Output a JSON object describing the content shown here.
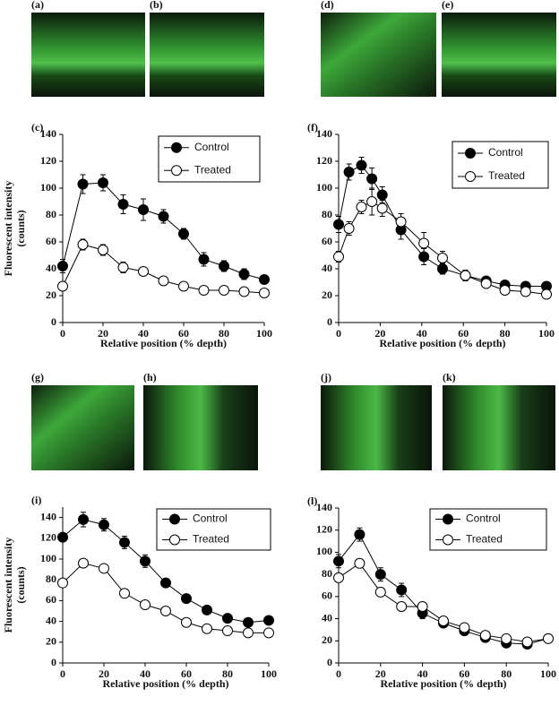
{
  "images": [
    {
      "label": "(a)"
    },
    {
      "label": "(b)"
    },
    {
      "label": "(d)"
    },
    {
      "label": "(e)"
    },
    {
      "label": "(g)"
    },
    {
      "label": "(h)"
    },
    {
      "label": "(j)"
    },
    {
      "label": "(k)"
    }
  ],
  "chart_data": [
    {
      "type": "line",
      "panel": "(c)",
      "ylabel": [
        "Fluorescent intensity",
        "(counts)"
      ],
      "xlabel": "Relative position (% depth)",
      "x": [
        0,
        10,
        20,
        30,
        40,
        50,
        60,
        70,
        80,
        90,
        100
      ],
      "series": [
        {
          "name": "Control",
          "color": "#000000",
          "values": [
            42,
            103,
            104,
            88,
            84,
            79,
            66,
            47,
            42,
            36,
            32
          ],
          "errors": [
            5,
            7,
            6,
            7,
            8,
            5,
            4,
            5,
            4,
            4,
            3
          ]
        },
        {
          "name": "Treated",
          "color": "#ffffff",
          "values": [
            27,
            58,
            54,
            41,
            38,
            31,
            27,
            24,
            24,
            23,
            22
          ],
          "errors": [
            3,
            4,
            4,
            4,
            3,
            2,
            2,
            2,
            2,
            2,
            2
          ]
        }
      ],
      "xlim": [
        0,
        100
      ],
      "xticks": [
        0,
        20,
        40,
        60,
        80,
        100
      ],
      "ylim": [
        0,
        140
      ],
      "yticks": [
        0,
        20,
        40,
        60,
        80,
        100,
        120,
        140
      ]
    },
    {
      "type": "line",
      "panel": "(f)",
      "xlabel": "Relative position (% depth)",
      "x": [
        0,
        5,
        11,
        16,
        21,
        30,
        41,
        50,
        61,
        71,
        80,
        90,
        100
      ],
      "series": [
        {
          "name": "Control",
          "color": "#000000",
          "values": [
            73,
            112,
            117,
            107,
            95,
            69,
            49,
            40,
            35,
            31,
            28,
            27,
            27
          ],
          "errors": [
            6,
            6,
            6,
            8,
            6,
            7,
            6,
            4,
            4,
            3,
            3,
            3,
            3
          ]
        },
        {
          "name": "Treated",
          "color": "#ffffff",
          "values": [
            49,
            70,
            86,
            90,
            85,
            75,
            59,
            48,
            35,
            29,
            24,
            23,
            21
          ],
          "errors": [
            4,
            5,
            5,
            10,
            6,
            6,
            8,
            5,
            3,
            3,
            2,
            2,
            2
          ]
        }
      ],
      "xlim": [
        0,
        100
      ],
      "xticks": [
        0,
        20,
        40,
        60,
        80,
        100
      ],
      "ylim": [
        0,
        140
      ],
      "yticks": [
        0,
        20,
        40,
        60,
        80,
        100,
        120,
        140
      ]
    },
    {
      "type": "line",
      "panel": "(i)",
      "ylabel": [
        "Fluorescent intensity",
        "(counts)"
      ],
      "xlabel": "Relative position (% depth)",
      "x": [
        0,
        10,
        20,
        30,
        40,
        50,
        60,
        70,
        80,
        90,
        100
      ],
      "series": [
        {
          "name": "Control",
          "color": "#000000",
          "values": [
            121,
            138,
            133,
            116,
            98,
            77,
            62,
            51,
            43,
            39,
            41
          ],
          "errors": [
            4,
            7,
            6,
            6,
            6,
            4,
            4,
            4,
            3,
            3,
            2
          ]
        },
        {
          "name": "Treated",
          "color": "#ffffff",
          "values": [
            77,
            96,
            91,
            67,
            56,
            50,
            39,
            33,
            31,
            29,
            29
          ],
          "errors": [
            3,
            4,
            4,
            4,
            3,
            2,
            2,
            2,
            2,
            2,
            2
          ]
        }
      ],
      "xlim": [
        0,
        100
      ],
      "xticks": [
        0,
        20,
        40,
        60,
        80,
        100
      ],
      "ylim": [
        0,
        150
      ],
      "yticks": [
        0,
        20,
        40,
        60,
        80,
        100,
        120,
        140
      ]
    },
    {
      "type": "line",
      "panel": "(l)",
      "xlabel": "Relative position (% depth)",
      "x": [
        0,
        10,
        20,
        30,
        40,
        50,
        60,
        70,
        80,
        90,
        100
      ],
      "series": [
        {
          "name": "Control",
          "color": "#000000",
          "values": [
            92,
            116,
            80,
            66,
            45,
            36,
            29,
            23,
            18,
            17,
            22
          ],
          "errors": [
            6,
            6,
            6,
            6,
            5,
            3,
            3,
            3,
            2,
            2,
            2
          ]
        },
        {
          "name": "Treated",
          "color": "#ffffff",
          "values": [
            77,
            90,
            64,
            51,
            51,
            38,
            32,
            25,
            22,
            19,
            22
          ],
          "errors": [
            4,
            4,
            4,
            4,
            4,
            3,
            3,
            3,
            2,
            2,
            2
          ]
        }
      ],
      "xlim": [
        0,
        100
      ],
      "xticks": [
        0,
        20,
        40,
        60,
        80,
        100
      ],
      "ylim": [
        0,
        140
      ],
      "yticks": [
        0,
        20,
        40,
        60,
        80,
        100,
        120,
        140
      ]
    }
  ]
}
